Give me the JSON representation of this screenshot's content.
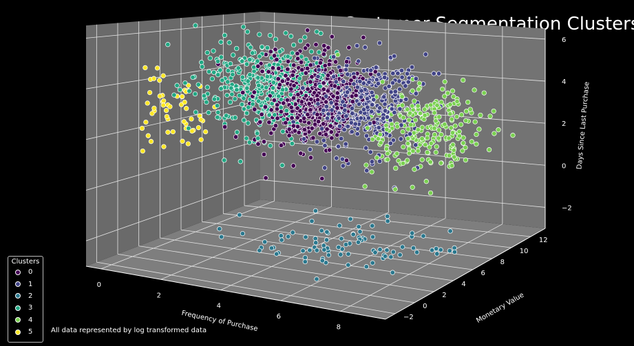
{
  "chart_data": {
    "type": "scatter",
    "title": "Customer Segmentation Clusters",
    "xlabel": "Frequency of Purchase",
    "ylabel": "Monetary Value",
    "zlabel": "Days Since Last Purchase",
    "xlim": [
      -0.5,
      9.5
    ],
    "ylim": [
      -3,
      13.5
    ],
    "zlim": [
      -3,
      6.5
    ],
    "x_ticks": [
      "0",
      "2",
      "4",
      "6",
      "8"
    ],
    "y_ticks": [
      "−2",
      "0",
      "2",
      "4",
      "6",
      "8",
      "10",
      "12"
    ],
    "z_ticks": [
      "−2",
      "0",
      "2",
      "4",
      "6"
    ],
    "legend_title": "Clusters",
    "legend_position": "lower-left",
    "grid": true,
    "background": "#000000",
    "pane_color": "#7a7a7a",
    "series": [
      {
        "name": "0",
        "color": "#440154",
        "center": [
          4.2,
          5.5,
          3.5
        ],
        "spread": [
          0.7,
          1.6,
          1.0
        ],
        "count": 520
      },
      {
        "name": "1",
        "color": "#414487",
        "center": [
          5.6,
          6.8,
          3.3
        ],
        "spread": [
          0.7,
          1.7,
          1.0
        ],
        "count": 360
      },
      {
        "name": "2",
        "color": "#2a788e",
        "center": [
          6.0,
          3.5,
          -2.0
        ],
        "spread": [
          1.5,
          2.0,
          0.2
        ],
        "count": 90
      },
      {
        "name": "3",
        "color": "#22a884",
        "center": [
          2.8,
          5.0,
          4.0
        ],
        "spread": [
          0.9,
          2.0,
          1.0
        ],
        "count": 420
      },
      {
        "name": "4",
        "color": "#7ad151",
        "center": [
          7.4,
          7.5,
          2.3
        ],
        "spread": [
          0.8,
          2.0,
          1.0
        ],
        "count": 240
      },
      {
        "name": "5",
        "color": "#fde725",
        "center": [
          0.6,
          2.5,
          3.0
        ],
        "spread": [
          0.5,
          1.2,
          1.0
        ],
        "count": 55
      }
    ]
  },
  "note": "All data represented by log transformed data"
}
